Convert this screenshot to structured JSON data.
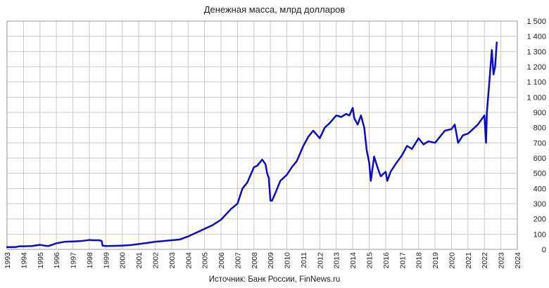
{
  "chart_data": {
    "type": "line",
    "title": "Денежная масса, млрд долларов",
    "source": "Источник: Банк России, FinNews.ru",
    "xlabel": "",
    "ylabel": "",
    "y_axis_side": "right",
    "ylim": [
      0,
      1500
    ],
    "yticks": [
      0,
      100,
      200,
      300,
      400,
      500,
      600,
      700,
      800,
      900,
      1000,
      1100,
      1200,
      1300,
      1400,
      1500
    ],
    "ytick_labels": [
      "0",
      "100",
      "200",
      "300",
      "400",
      "500",
      "600",
      "700",
      "800",
      "900",
      "1 000",
      "1 100",
      "1 200",
      "1 300",
      "1 400",
      "1 500"
    ],
    "xlim": [
      1993,
      2024
    ],
    "xticks": [
      1993,
      1994,
      1995,
      1996,
      1997,
      1998,
      1999,
      2000,
      2001,
      2002,
      2003,
      2004,
      2005,
      2006,
      2007,
      2008,
      2009,
      2010,
      2011,
      2012,
      2013,
      2014,
      2015,
      2016,
      2017,
      2018,
      2019,
      2020,
      2021,
      2022,
      2023,
      2024
    ],
    "xtick_labels": [
      "1993",
      "1994",
      "1995",
      "1996",
      "1997",
      "1998",
      "1999",
      "2000",
      "2001",
      "2002",
      "2003",
      "2004",
      "2005",
      "2006",
      "2007",
      "2008",
      "2009",
      "2010",
      "2011",
      "2012",
      "2013",
      "2014",
      "2015",
      "2016",
      "2017",
      "2018",
      "2019",
      "2020",
      "2021",
      "2022",
      "2023",
      "2024"
    ],
    "grid": true,
    "line_color": "#0b0bc8",
    "series": [
      {
        "x": [
          1993.0,
          1993.5,
          1993.75,
          1994.0,
          1994.5,
          1995.0,
          1995.25,
          1995.5,
          1995.75,
          1996.0,
          1996.5,
          1997.0,
          1997.5,
          1997.75,
          1998.0,
          1998.3,
          1998.6,
          1998.75,
          1998.8,
          1999.0,
          1999.5,
          2000.0,
          2000.5,
          2001.0,
          2001.5,
          2002.0,
          2002.5,
          2003.0,
          2003.5,
          2004.0,
          2004.5,
          2005.0,
          2005.5,
          2006.0,
          2006.3,
          2006.6,
          2007.0,
          2007.3,
          2007.6,
          2008.0,
          2008.2,
          2008.5,
          2008.7,
          2008.8,
          2008.9,
          2009.0,
          2009.1,
          2009.3,
          2009.6,
          2010.0,
          2010.3,
          2010.6,
          2011.0,
          2011.3,
          2011.6,
          2012.0,
          2012.3,
          2012.6,
          2013.0,
          2013.3,
          2013.6,
          2013.8,
          2014.0,
          2014.1,
          2014.3,
          2014.5,
          2014.7,
          2014.85,
          2015.0,
          2015.1,
          2015.3,
          2015.5,
          2015.7,
          2016.0,
          2016.1,
          2016.3,
          2016.6,
          2017.0,
          2017.3,
          2017.6,
          2018.0,
          2018.3,
          2018.6,
          2019.0,
          2019.3,
          2019.6,
          2020.0,
          2020.2,
          2020.4,
          2020.7,
          2021.0,
          2021.3,
          2021.6,
          2022.0,
          2022.1,
          2022.15,
          2022.3,
          2022.45,
          2022.55,
          2022.65,
          2022.75
        ],
        "values": [
          15,
          15,
          20,
          20,
          22,
          30,
          25,
          22,
          30,
          40,
          50,
          52,
          55,
          58,
          62,
          60,
          60,
          55,
          25,
          22,
          23,
          25,
          28,
          35,
          42,
          50,
          55,
          60,
          65,
          85,
          110,
          135,
          160,
          195,
          230,
          265,
          300,
          400,
          440,
          540,
          550,
          590,
          560,
          500,
          470,
          320,
          320,
          370,
          450,
          490,
          540,
          580,
          680,
          740,
          780,
          730,
          800,
          830,
          880,
          870,
          890,
          880,
          930,
          860,
          820,
          880,
          800,
          650,
          570,
          450,
          610,
          540,
          480,
          510,
          450,
          510,
          560,
          620,
          680,
          660,
          730,
          690,
          710,
          700,
          740,
          780,
          790,
          820,
          700,
          750,
          760,
          790,
          820,
          880,
          700,
          900,
          1100,
          1310,
          1150,
          1200,
          1360
        ]
      }
    ]
  }
}
